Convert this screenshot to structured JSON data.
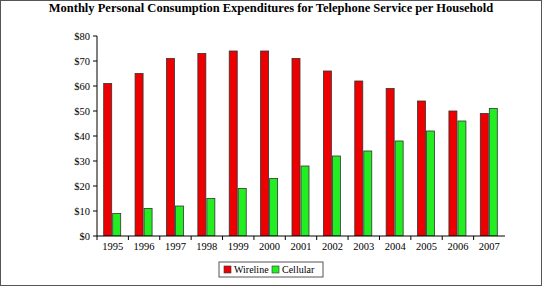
{
  "chart_data": {
    "type": "bar",
    "title": "Monthly Personal Consumption Expenditures for Telephone Service per Household",
    "categories": [
      "1995",
      "1996",
      "1997",
      "1998",
      "1999",
      "2000",
      "2001",
      "2002",
      "2003",
      "2004",
      "2005",
      "2006",
      "2007"
    ],
    "series": [
      {
        "name": "Wireline",
        "color": "#ee0000",
        "values": [
          61,
          65,
          71,
          73,
          74,
          74,
          71,
          66,
          62,
          59,
          54,
          50,
          49
        ]
      },
      {
        "name": "Cellular",
        "color": "#22ee22",
        "values": [
          9,
          11,
          12,
          15,
          19,
          23,
          28,
          32,
          34,
          38,
          42,
          46,
          51
        ]
      }
    ],
    "ylim": [
      0,
      80
    ],
    "yticks": [
      {
        "value": 0,
        "label": "$0"
      },
      {
        "value": 10,
        "label": "$10"
      },
      {
        "value": 20,
        "label": "$20"
      },
      {
        "value": 30,
        "label": "$30"
      },
      {
        "value": 40,
        "label": "$40"
      },
      {
        "value": 50,
        "label": "$50"
      },
      {
        "value": 60,
        "label": "$60"
      },
      {
        "value": 70,
        "label": "$70"
      },
      {
        "value": 80,
        "label": "$80"
      }
    ],
    "grid": false,
    "legend": "bottom"
  }
}
